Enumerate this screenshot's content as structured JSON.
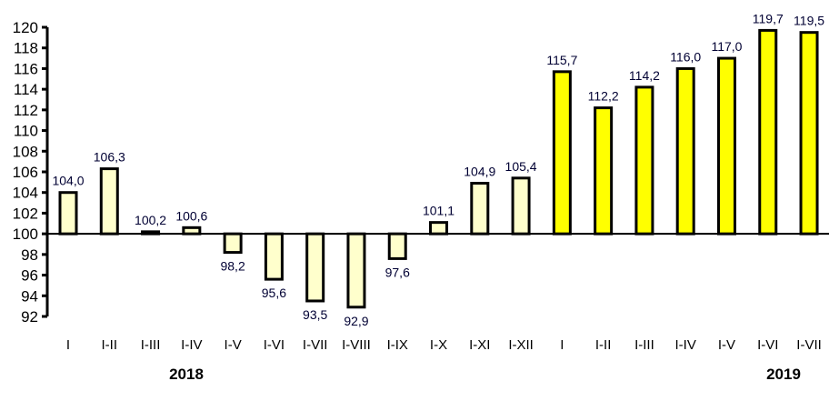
{
  "chart_data": {
    "type": "bar",
    "title": "",
    "xlabel": "",
    "ylabel": "",
    "ylim": [
      92,
      120
    ],
    "baseline": 100,
    "yticks": [
      "92",
      "94",
      "96",
      "98",
      "100",
      "102",
      "104",
      "106",
      "108",
      "110",
      "112",
      "114",
      "116",
      "118",
      "120"
    ],
    "grid": false,
    "categories": [
      "I",
      "I-II",
      "I-III",
      "I-IV",
      "I-V",
      "I-VI",
      "I-VII",
      "I-VIII",
      "I-IX",
      "I-X",
      "I-XI",
      "I-XII",
      "I",
      "I-II",
      "I-III",
      "I-IV",
      "I-V",
      "I-VI",
      "I-VII"
    ],
    "values": [
      104.0,
      106.3,
      100.2,
      100.6,
      98.2,
      95.6,
      93.5,
      92.9,
      97.6,
      101.1,
      104.9,
      105.4,
      115.7,
      112.2,
      114.2,
      116.0,
      117.0,
      119.7,
      119.5
    ],
    "value_labels": [
      "104,0",
      "106,3",
      "100,2",
      "100,6",
      "98,2",
      "95,6",
      "93,5",
      "92,9",
      "97,6",
      "101,1",
      "104,9",
      "105,4",
      "115,7",
      "112,2",
      "114,2",
      "116,0",
      "117,0",
      "119,7",
      "119,5"
    ],
    "groups": [
      {
        "year": "2018",
        "start": 0,
        "count": 12,
        "color": "#FFFFCC"
      },
      {
        "year": "2019",
        "start": 12,
        "count": 7,
        "color": "#FFFF00"
      }
    ]
  }
}
